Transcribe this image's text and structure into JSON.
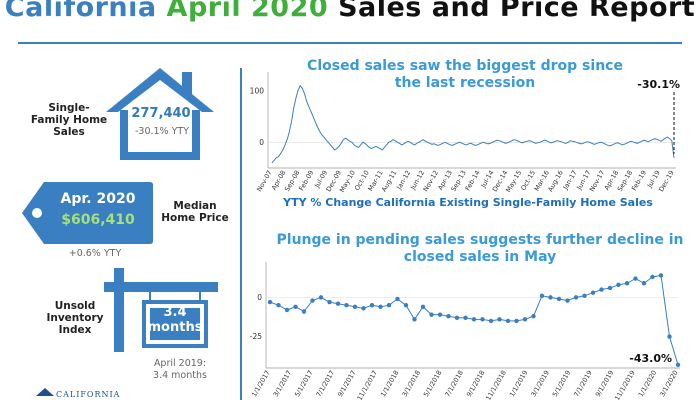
{
  "header": {
    "title_part1": "California",
    "title_part2": "April 2020",
    "title_part3": "Sales and Price Report",
    "colors": {
      "blue": "#3a7fc1",
      "green": "#3fae3a",
      "dark": "#111111"
    }
  },
  "stats": {
    "sales": {
      "label": "Single-Family Home Sales",
      "value": "277,440",
      "change": "-30.1% YTY"
    },
    "price": {
      "month": "Apr. 2020",
      "value": "$606,410",
      "label": "Median Home Price",
      "change": "+0.6% YTY"
    },
    "inventory": {
      "label": "Unsold Inventory Index",
      "value": "3.4",
      "unit": "months",
      "prior": "April 2019:",
      "prior_value": "3.4 months"
    }
  },
  "logo": {
    "text": "CALIFORNIA"
  },
  "chart_data": [
    {
      "type": "line",
      "title": "Closed sales saw the biggest drop since the last recession",
      "xlabel": "YTY % Change California Existing Single-Family Home Sales",
      "ylabel": "",
      "ylim": [
        -50,
        125
      ],
      "yticks": [
        0,
        100
      ],
      "x_tick_labels": [
        "Nov-07",
        "Apr-08",
        "Sep-08",
        "Feb-09",
        "Jul-09",
        "Dec-09",
        "May-10",
        "Oct-10",
        "Mar-11",
        "Aug-11",
        "Jan-12",
        "Jun-12",
        "Nov-12",
        "Apr-13",
        "Sep-13",
        "Feb-14",
        "Jul-14",
        "Dec-14",
        "May-15",
        "Oct-15",
        "Mar-16",
        "Aug-16",
        "Jan-17",
        "Jun-17",
        "Nov-17",
        "Apr-18",
        "Sep-18",
        "Feb-19",
        "Jul-19",
        "Dec-19"
      ],
      "annotation": "-30.1%",
      "series": [
        {
          "color": "#3a7fc1",
          "values": [
            -40,
            -35,
            -30,
            -28,
            -22,
            -15,
            -5,
            5,
            20,
            40,
            65,
            85,
            100,
            110,
            105,
            95,
            80,
            70,
            60,
            50,
            40,
            30,
            22,
            15,
            10,
            5,
            0,
            -5,
            -10,
            -15,
            -12,
            -8,
            -2,
            5,
            8,
            5,
            2,
            0,
            -5,
            -8,
            -10,
            -5,
            0,
            -2,
            -6,
            -10,
            -12,
            -10,
            -8,
            -10,
            -12,
            -15,
            -10,
            -5,
            0,
            2,
            5,
            3,
            0,
            -2,
            -5,
            -3,
            0,
            2,
            0,
            -3,
            -5,
            -2,
            0,
            3,
            5,
            2,
            0,
            -2,
            -4,
            -3,
            -5,
            -6,
            -4,
            -2,
            0,
            -2,
            -4,
            -6,
            -5,
            -3,
            -1,
            0,
            -2,
            -4,
            -5,
            -3,
            -2,
            -4,
            -6,
            -5,
            -3,
            -1,
            0,
            -2,
            -3,
            -2,
            0,
            2,
            4,
            3,
            2,
            0,
            -2,
            -1,
            1,
            3,
            5,
            4,
            2,
            0,
            -1,
            1,
            2,
            3,
            2,
            0,
            -2,
            -1,
            0,
            2,
            4,
            3,
            1,
            -1,
            0,
            2,
            3,
            2,
            1,
            -1,
            -2,
            0,
            3,
            2,
            1,
            0,
            -2,
            -3,
            -2,
            0,
            1,
            0,
            -2,
            -4,
            -3,
            -1,
            0,
            -1,
            -3,
            -5,
            -7,
            -6,
            -4,
            -2,
            -1,
            -3,
            -5,
            -4,
            -2,
            0,
            2,
            1,
            -1,
            -2,
            0,
            2,
            4,
            3,
            1,
            3,
            5,
            7,
            6,
            4,
            2,
            5,
            8,
            10,
            7,
            3,
            -30.1
          ]
        }
      ]
    },
    {
      "type": "line",
      "title": "Plunge in pending sales suggests further decline in closed sales in May",
      "xlabel": "",
      "ylabel": "",
      "ylim": [
        -45,
        20
      ],
      "yticks": [
        0,
        -25
      ],
      "x_tick_labels": [
        "1/1/2017",
        "3/1/2017",
        "5/1/2017",
        "7/1/2017",
        "9/1/2017",
        "11/1/2017",
        "1/1/2018",
        "3/1/2018",
        "5/1/2018",
        "7/1/2018",
        "9/1/2018",
        "11/1/2018",
        "1/1/2019",
        "3/1/2019",
        "5/1/2019",
        "7/1/2019",
        "9/1/2019",
        "11/1/2019",
        "1/1/2020",
        "3/1/2020"
      ],
      "annotation": "-43.0%",
      "series": [
        {
          "color": "#3a7fc1",
          "marker": "circle",
          "values": [
            -3,
            -5,
            -8,
            -6,
            -9,
            -2,
            0,
            -3,
            -4,
            -5,
            -6,
            -7,
            -5,
            -6,
            -5,
            -1,
            -5,
            -14,
            -6,
            -11,
            -11,
            -12,
            -13,
            -13,
            -14,
            -14,
            -15,
            -14,
            -15,
            -15,
            -14,
            -12,
            1,
            0,
            -1,
            -2,
            0,
            1,
            3,
            5,
            6,
            8,
            9,
            12,
            9,
            13,
            14,
            -25,
            -43
          ]
        }
      ]
    }
  ]
}
